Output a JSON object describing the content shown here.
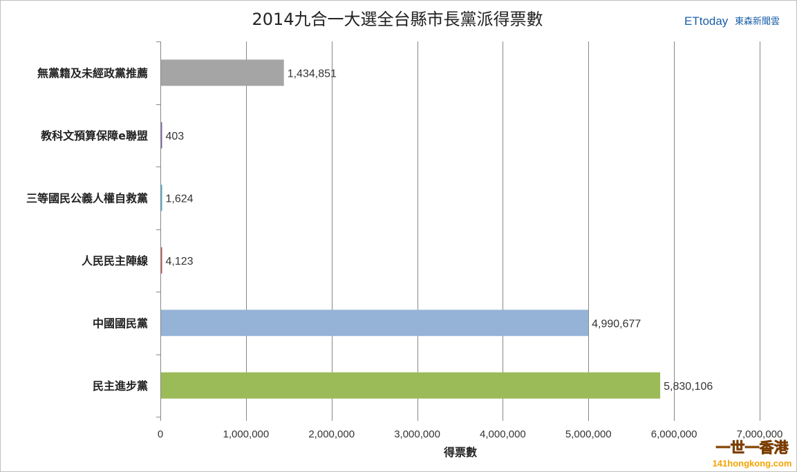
{
  "chart_data": {
    "type": "bar",
    "orientation": "horizontal",
    "title": "2014九合一大選全台縣市長黨派得票數",
    "xlabel": "得票數",
    "ylabel": "",
    "xlim": [
      0,
      7000000
    ],
    "xticks": [
      0,
      1000000,
      2000000,
      3000000,
      4000000,
      5000000,
      6000000,
      7000000
    ],
    "xtick_labels": [
      "0",
      "1,000,000",
      "2,000,000",
      "3,000,000",
      "4,000,000",
      "5,000,000",
      "6,000,000",
      "7,000,000"
    ],
    "grid": true,
    "bars": [
      {
        "category": "無黨籍及未經政黨推薦",
        "value": 1434851,
        "label": "1,434,851",
        "color": "#a5a5a5"
      },
      {
        "category": "教科文預算保障e聯盟",
        "value": 403,
        "label": "403",
        "color": "#8064a2"
      },
      {
        "category": "三等國民公義人權自救黨",
        "value": 1624,
        "label": "1,624",
        "color": "#4bacc6"
      },
      {
        "category": "人民民主陣線",
        "value": 4123,
        "label": "4,123",
        "color": "#c0504d"
      },
      {
        "category": "中國國民黨",
        "value": 4990677,
        "label": "4,990,677",
        "color": "#95b3d7"
      },
      {
        "category": "民主進步黨",
        "value": 5830106,
        "label": "5,830,106",
        "color": "#9bbb59"
      }
    ]
  },
  "branding": {
    "logo_latin": "ETtoday",
    "logo_cjk": "東森新聞雲"
  },
  "watermark": {
    "line1": "一世一香港",
    "line2": "141hongkong.com"
  }
}
